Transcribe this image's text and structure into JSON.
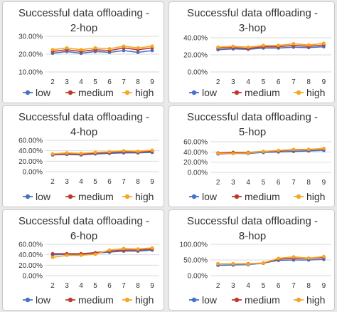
{
  "chart_data": [
    {
      "type": "line",
      "title_lines": [
        "Successful data offloading -",
        "2-hop"
      ],
      "categories": [
        "2",
        "3",
        "4",
        "5",
        "6",
        "7",
        "8",
        "9"
      ],
      "ylim": [
        0.1,
        0.3
      ],
      "yticks": [
        0.1,
        0.2,
        0.3
      ],
      "ytick_labels": [
        "10.00%",
        "20.00%",
        "30.00%"
      ],
      "grid": true,
      "legend_position": "bottom",
      "series": [
        {
          "name": "low",
          "color": "#4472C4",
          "values": [
            0.205,
            0.215,
            0.205,
            0.215,
            0.21,
            0.22,
            0.21,
            0.22
          ]
        },
        {
          "name": "medium",
          "color": "#C0392B",
          "values": [
            0.215,
            0.225,
            0.215,
            0.225,
            0.22,
            0.235,
            0.225,
            0.235
          ]
        },
        {
          "name": "high",
          "color": "#F5A623",
          "values": [
            0.225,
            0.235,
            0.225,
            0.235,
            0.23,
            0.245,
            0.235,
            0.245
          ]
        }
      ]
    },
    {
      "type": "line",
      "title_lines": [
        "Successful data offloading -",
        "3-hop"
      ],
      "categories": [
        "2",
        "3",
        "4",
        "5",
        "6",
        "7",
        "8",
        "9"
      ],
      "ylim": [
        0.0,
        0.4
      ],
      "yticks": [
        0.0,
        0.2,
        0.4
      ],
      "ytick_labels": [
        "0.00%",
        "20.00%",
        "40.00%"
      ],
      "grid": true,
      "legend_position": "bottom",
      "series": [
        {
          "name": "low",
          "color": "#4472C4",
          "values": [
            0.26,
            0.27,
            0.265,
            0.28,
            0.28,
            0.29,
            0.285,
            0.295
          ]
        },
        {
          "name": "medium",
          "color": "#C0392B",
          "values": [
            0.28,
            0.285,
            0.275,
            0.295,
            0.295,
            0.31,
            0.3,
            0.315
          ]
        },
        {
          "name": "high",
          "color": "#F5A623",
          "values": [
            0.29,
            0.3,
            0.29,
            0.31,
            0.31,
            0.33,
            0.315,
            0.335
          ]
        }
      ]
    },
    {
      "type": "line",
      "title_lines": [
        "Successful data offloading -",
        "4-hop"
      ],
      "categories": [
        "2",
        "3",
        "4",
        "5",
        "6",
        "7",
        "8",
        "9"
      ],
      "ylim": [
        0.0,
        0.6
      ],
      "yticks": [
        0.0,
        0.2,
        0.4,
        0.6
      ],
      "ytick_labels": [
        "0.00%",
        "20.00%",
        "40.00%",
        "60.00%"
      ],
      "grid": true,
      "legend_position": "bottom",
      "series": [
        {
          "name": "low",
          "color": "#4472C4",
          "values": [
            0.32,
            0.33,
            0.32,
            0.34,
            0.35,
            0.36,
            0.36,
            0.37
          ]
        },
        {
          "name": "medium",
          "color": "#C0392B",
          "values": [
            0.33,
            0.345,
            0.335,
            0.355,
            0.365,
            0.38,
            0.375,
            0.39
          ]
        },
        {
          "name": "high",
          "color": "#F5A623",
          "values": [
            0.34,
            0.36,
            0.35,
            0.37,
            0.38,
            0.4,
            0.39,
            0.41
          ]
        }
      ]
    },
    {
      "type": "line",
      "title_lines": [
        "Successful data offloading -",
        "5-hop"
      ],
      "categories": [
        "2",
        "3",
        "4",
        "5",
        "6",
        "7",
        "8",
        "9"
      ],
      "ylim": [
        0.0,
        0.6
      ],
      "yticks": [
        0.0,
        0.2,
        0.4,
        0.6
      ],
      "ytick_labels": [
        "0.00%",
        "20.00%",
        "40.00%",
        "60.00%"
      ],
      "grid": true,
      "legend_position": "bottom",
      "series": [
        {
          "name": "low",
          "color": "#4472C4",
          "values": [
            0.36,
            0.37,
            0.37,
            0.39,
            0.4,
            0.41,
            0.42,
            0.43
          ]
        },
        {
          "name": "medium",
          "color": "#C0392B",
          "values": [
            0.38,
            0.39,
            0.39,
            0.41,
            0.42,
            0.44,
            0.44,
            0.46
          ]
        },
        {
          "name": "high",
          "color": "#F5A623",
          "values": [
            0.37,
            0.37,
            0.38,
            0.41,
            0.43,
            0.45,
            0.45,
            0.47
          ]
        }
      ]
    },
    {
      "type": "line",
      "title_lines": [
        "Successful data offloading -",
        "6-hop"
      ],
      "categories": [
        "2",
        "3",
        "4",
        "5",
        "6",
        "7",
        "8",
        "9"
      ],
      "ylim": [
        0.0,
        0.6
      ],
      "yticks": [
        0.0,
        0.2,
        0.4,
        0.6
      ],
      "ytick_labels": [
        "0.00%",
        "20.00%",
        "40.00%",
        "60.00%"
      ],
      "grid": true,
      "legend_position": "bottom",
      "series": [
        {
          "name": "low",
          "color": "#4472C4",
          "values": [
            0.4,
            0.41,
            0.4,
            0.43,
            0.45,
            0.47,
            0.47,
            0.49
          ]
        },
        {
          "name": "medium",
          "color": "#C0392B",
          "values": [
            0.42,
            0.42,
            0.42,
            0.44,
            0.47,
            0.49,
            0.49,
            0.51
          ]
        },
        {
          "name": "high",
          "color": "#F5A623",
          "values": [
            0.35,
            0.39,
            0.39,
            0.41,
            0.49,
            0.52,
            0.51,
            0.53
          ]
        }
      ]
    },
    {
      "type": "line",
      "title_lines": [
        "Successful data offloading -",
        "8-hop"
      ],
      "categories": [
        "2",
        "3",
        "4",
        "5",
        "6",
        "7",
        "8",
        "9"
      ],
      "ylim": [
        0.0,
        1.0
      ],
      "yticks": [
        0.0,
        0.5,
        1.0
      ],
      "ytick_labels": [
        "0.00%",
        "50.00%",
        "100.00%"
      ],
      "grid": true,
      "legend_position": "bottom",
      "series": [
        {
          "name": "low",
          "color": "#4472C4",
          "values": [
            0.33,
            0.34,
            0.35,
            0.4,
            0.49,
            0.5,
            0.5,
            0.52
          ]
        },
        {
          "name": "medium",
          "color": "#C0392B",
          "values": [
            0.38,
            0.38,
            0.38,
            0.4,
            0.53,
            0.56,
            0.55,
            0.58
          ]
        },
        {
          "name": "high",
          "color": "#F5A623",
          "values": [
            0.38,
            0.38,
            0.37,
            0.41,
            0.55,
            0.6,
            0.56,
            0.61
          ]
        }
      ]
    }
  ]
}
